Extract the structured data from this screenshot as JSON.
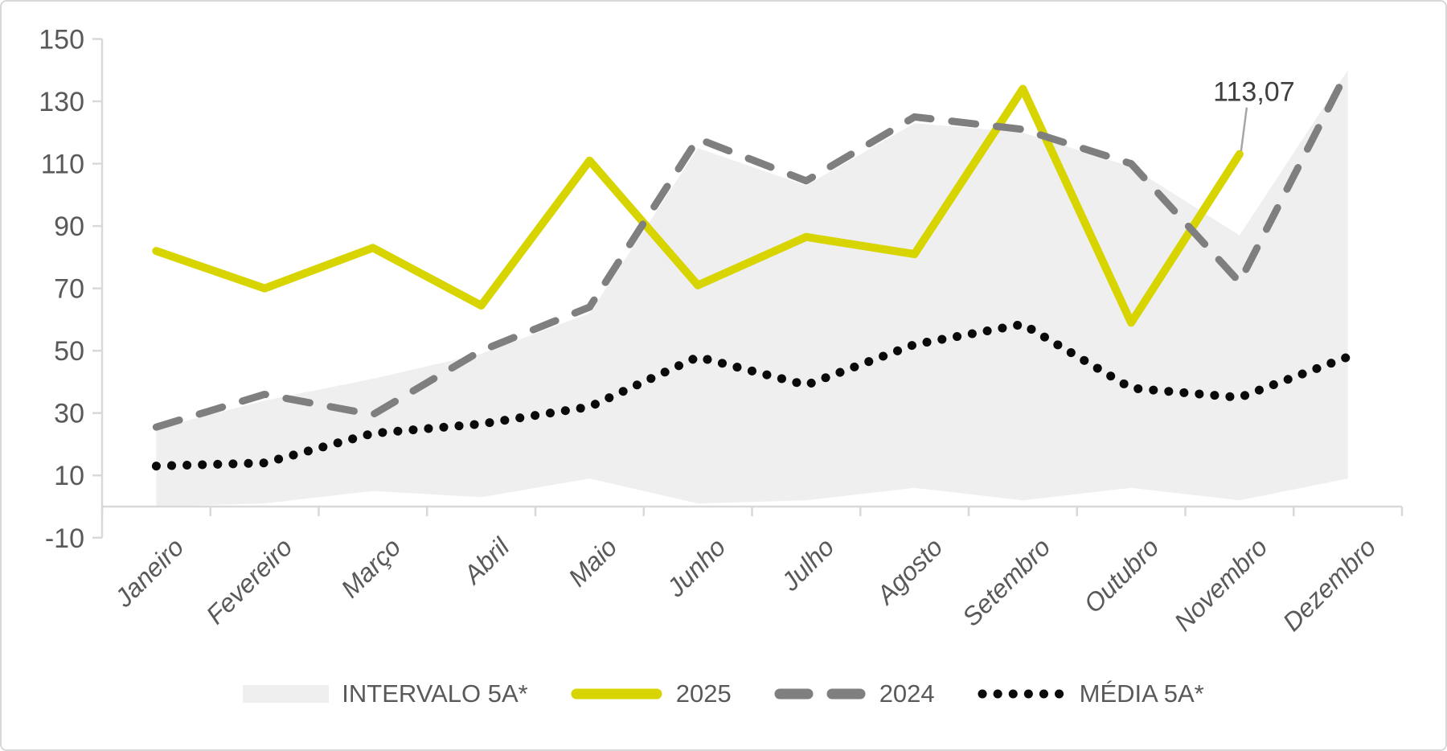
{
  "chart_data": {
    "type": "line",
    "title": "",
    "categories": [
      "Janeiro",
      "Fevereiro",
      "Março",
      "Abril",
      "Maio",
      "Junho",
      "Julho",
      "Agosto",
      "Setembro",
      "Outubro",
      "Novembro",
      "Dezembro"
    ],
    "series": [
      {
        "name": "INTERVALO 5A*",
        "type": "area-band",
        "color": "#efefef",
        "upper": [
          25,
          34,
          41,
          49,
          62,
          115,
          103,
          123,
          120,
          109,
          87,
          140
        ],
        "lower": [
          0,
          1,
          5,
          3,
          9,
          1,
          2,
          6,
          2,
          6,
          2,
          9
        ]
      },
      {
        "name": "2025",
        "type": "line",
        "style": "solid",
        "color": "#d7d400",
        "values": [
          82,
          70,
          83,
          64.5,
          111,
          71,
          86.5,
          81,
          134,
          59,
          113.07,
          null
        ]
      },
      {
        "name": "2024",
        "type": "line",
        "style": "dashed",
        "color": "#7f7f7f",
        "values": [
          25.5,
          36,
          29.5,
          50,
          64,
          118,
          104.5,
          125,
          121,
          110,
          72,
          140
        ]
      },
      {
        "name": "MÉDIA 5A*",
        "type": "line",
        "style": "dotted",
        "color": "#0a0a0a",
        "values": [
          13,
          14,
          23.5,
          26.5,
          32,
          48,
          39,
          52,
          58.5,
          38,
          35,
          48
        ]
      }
    ],
    "annotation": {
      "text": "113,07",
      "value": 113.07,
      "series": "2025",
      "category": "Novembro"
    },
    "y_axis": {
      "min": -10,
      "max": 150,
      "step": 20,
      "ticks": [
        150,
        130,
        110,
        90,
        70,
        50,
        30,
        10,
        -10
      ]
    },
    "x_axis": {
      "label_rotation_deg": -45,
      "labels_italic": true
    },
    "legend": {
      "position": "bottom",
      "items": [
        "INTERVALO 5A*",
        "2025",
        "2024",
        "MÉDIA 5A*"
      ]
    },
    "grid": false
  },
  "colors": {
    "axis": "#d9d9d9",
    "tick_labels": "#595959",
    "annotation_text": "#3f3f3f",
    "leader_line": "#a6a6a6",
    "background": "#ffffff",
    "border": "#d8d8d8"
  }
}
